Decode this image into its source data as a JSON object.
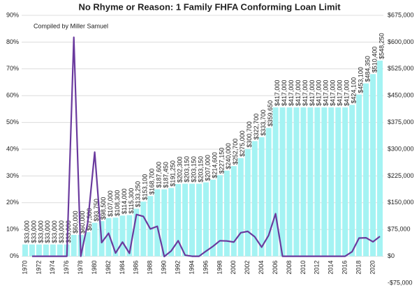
{
  "chart_data": {
    "type": "bar",
    "title": "No Rhyme or Reason: 1 Family FHFA Conforming Loan Limit",
    "subtitle": "Compiled by Miller Samuel",
    "categories": [
      "1970",
      null,
      "1972",
      null,
      "1974",
      null,
      "1976",
      null,
      "1978",
      null,
      "1980",
      null,
      "1982",
      null,
      "1984",
      null,
      "1986",
      null,
      "1988",
      null,
      "1990",
      null,
      "1992",
      null,
      "1994",
      null,
      "1996",
      null,
      "1998",
      null,
      "2000",
      null,
      "2002",
      null,
      "2004",
      null,
      "2006",
      null,
      "2008",
      null,
      "2010",
      null,
      "2012",
      null,
      "2014",
      null,
      "2016",
      null,
      "2018",
      null,
      "2020",
      null
    ],
    "ylim": [
      -10,
      90
    ],
    "yticks": [
      {
        "value": 0,
        "label": "0%"
      },
      {
        "value": 10,
        "label": "10%"
      },
      {
        "value": 20,
        "label": "20%"
      },
      {
        "value": 30,
        "label": "30%"
      },
      {
        "value": 40,
        "label": "40%"
      },
      {
        "value": 50,
        "label": "50%"
      },
      {
        "value": 60,
        "label": "60%"
      },
      {
        "value": 70,
        "label": "70%"
      },
      {
        "value": 80,
        "label": "80%"
      },
      {
        "value": 90,
        "label": "90%"
      }
    ],
    "y2lim": [
      -75000,
      675000
    ],
    "y2ticks": [
      {
        "value": -75000,
        "label": "-$75,000"
      },
      {
        "value": 0,
        "label": "$0"
      },
      {
        "value": 75000,
        "label": "$75,000"
      },
      {
        "value": 150000,
        "label": "$150,000"
      },
      {
        "value": 225000,
        "label": "$225,000"
      },
      {
        "value": 300000,
        "label": "$300,000"
      },
      {
        "value": 375000,
        "label": "$375,000"
      },
      {
        "value": 450000,
        "label": "$450,000"
      },
      {
        "value": 525000,
        "label": "$525,000"
      },
      {
        "value": 600000,
        "label": "$600,000"
      },
      {
        "value": 675000,
        "label": "$675,000"
      }
    ],
    "grid": true,
    "series": [
      {
        "type": "bar",
        "axis": "y2",
        "color": "#a4f3f3",
        "values": [
          33000,
          33000,
          33000,
          33000,
          33000,
          33000,
          33000,
          60000,
          60000,
          67500,
          93750,
          98500,
          107000,
          108300,
          114000,
          115300,
          133250,
          153100,
          168700,
          187600,
          187450,
          191250,
          202300,
          203150,
          203150,
          203150,
          207000,
          214600,
          227150,
          240000,
          252700,
          275000,
          300700,
          322700,
          333700,
          359650,
          417000,
          417000,
          417000,
          417000,
          417000,
          417000,
          417000,
          417000,
          417000,
          417000,
          417000,
          424100,
          453100,
          484350,
          510400,
          548250
        ],
        "value_labels": [
          "$33,000",
          "$33,000",
          "$33,000",
          "$33,000",
          "$33,000",
          "$33,000",
          "$33,000",
          "$60,000",
          "$60,000",
          "$67,500",
          "$93,750",
          "$98,500",
          "$107,000",
          "$108,300",
          "$114,000",
          "$115,300",
          "$133,250",
          "$153,100",
          "$168,700",
          "$187,600",
          "$187,450",
          "$191,250",
          "$202,300",
          "$203,150",
          "$203,150",
          "$203,150",
          "$207,000",
          "$214,600",
          "$227,150",
          "$240,000",
          "$252,700",
          "$275,000",
          "$300,700",
          "$322,700",
          "$333,700",
          "$359,650",
          "$417,000",
          "$417,000",
          "$417,000",
          "$417,000",
          "$417,000",
          "$417,000",
          "$417,000",
          "$417,000",
          "$417,000",
          "$417,000",
          "$417,000",
          "$424,100",
          "$453,100",
          "$484,350",
          "$510,400",
          "$548,250"
        ]
      },
      {
        "type": "line",
        "color": "#6a3a9e",
        "values": [
          null,
          0,
          0,
          0,
          0,
          0,
          0,
          81.8,
          0,
          12.5,
          38.9,
          5.1,
          8.6,
          1.2,
          5.3,
          1.1,
          15.6,
          14.9,
          10.2,
          11.2,
          -0.1,
          2.0,
          5.8,
          0.4,
          0,
          0,
          1.9,
          3.7,
          5.8,
          5.7,
          5.3,
          8.8,
          9.3,
          7.3,
          3.4,
          7.8,
          15.9,
          0,
          0,
          0,
          0,
          0,
          0,
          0,
          0,
          0,
          0,
          1.7,
          6.8,
          6.9,
          5.4,
          7.4
        ]
      }
    ]
  }
}
